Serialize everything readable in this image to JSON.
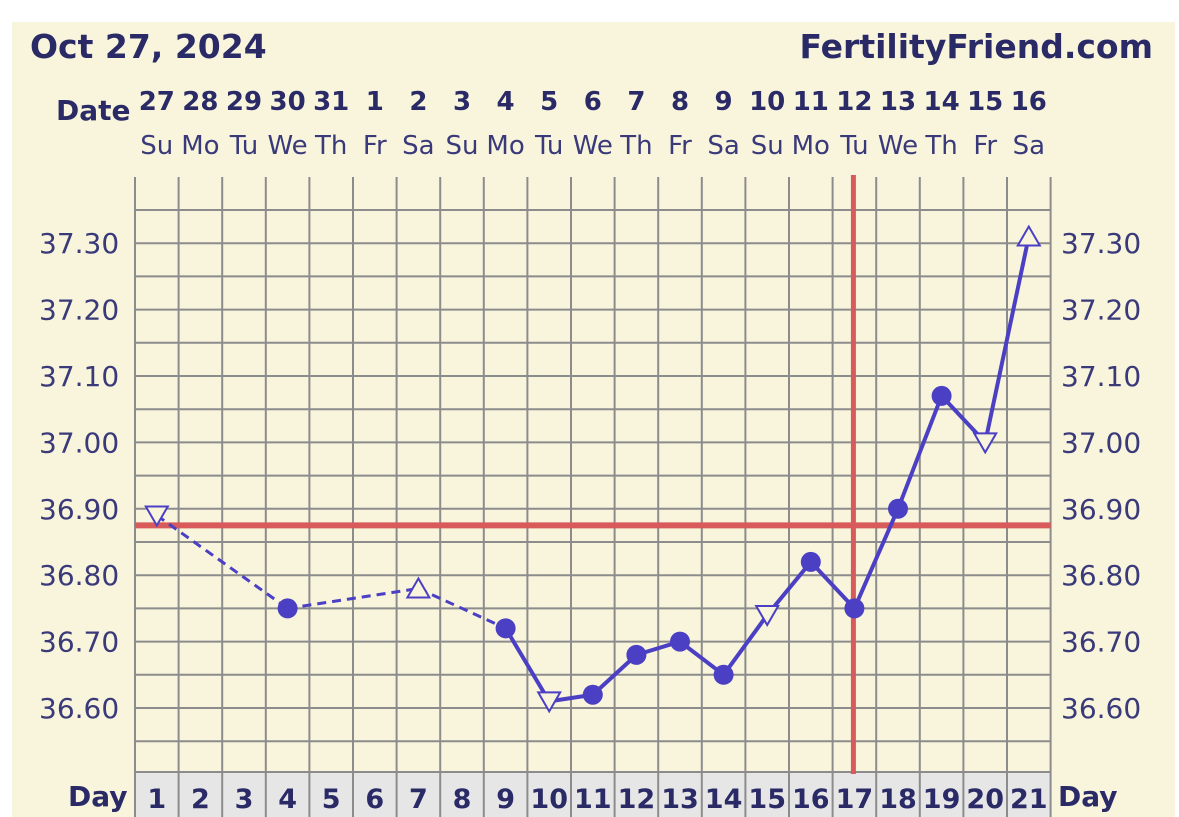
{
  "header": {
    "date": "Oct 27, 2024",
    "site": "FertilityFriend.com",
    "date_label": "Date",
    "day_label": "Day"
  },
  "colors": {
    "temp_line": "#4b3fc4",
    "coverline": "#d85a5a",
    "ovulation_line": "#d85a5a",
    "grid": "#8c8c8c",
    "background": "#f8f5dc"
  },
  "chart_data": {
    "type": "line",
    "title": "",
    "ylim": [
      36.5,
      37.4
    ],
    "y_ticks": [
      "36.60",
      "36.70",
      "36.80",
      "36.90",
      "37.00",
      "37.10",
      "37.20",
      "37.30"
    ],
    "dates": [
      "27",
      "28",
      "29",
      "30",
      "31",
      "1",
      "2",
      "3",
      "4",
      "5",
      "6",
      "7",
      "8",
      "9",
      "10",
      "11",
      "12",
      "13",
      "14",
      "15",
      "16"
    ],
    "weekdays": [
      "Su",
      "Mo",
      "Tu",
      "We",
      "Th",
      "Fr",
      "Sa",
      "Su",
      "Mo",
      "Tu",
      "We",
      "Th",
      "Fr",
      "Sa",
      "Su",
      "Mo",
      "Tu",
      "We",
      "Th",
      "Fr",
      "Sa"
    ],
    "days": [
      1,
      2,
      3,
      4,
      5,
      6,
      7,
      8,
      9,
      10,
      11,
      12,
      13,
      14,
      15,
      16,
      17,
      18,
      19,
      20,
      21
    ],
    "points": [
      {
        "day": 1,
        "temp": 36.89,
        "marker": "triangle-down"
      },
      {
        "day": 4,
        "temp": 36.75,
        "marker": "circle"
      },
      {
        "day": 7,
        "temp": 36.78,
        "marker": "triangle-up"
      },
      {
        "day": 9,
        "temp": 36.72,
        "marker": "circle"
      },
      {
        "day": 10,
        "temp": 36.61,
        "marker": "triangle-down"
      },
      {
        "day": 11,
        "temp": 36.62,
        "marker": "circle"
      },
      {
        "day": 12,
        "temp": 36.68,
        "marker": "circle"
      },
      {
        "day": 13,
        "temp": 36.7,
        "marker": "circle"
      },
      {
        "day": 14,
        "temp": 36.65,
        "marker": "circle"
      },
      {
        "day": 15,
        "temp": 36.74,
        "marker": "triangle-down"
      },
      {
        "day": 16,
        "temp": 36.82,
        "marker": "circle"
      },
      {
        "day": 17,
        "temp": 36.75,
        "marker": "circle"
      },
      {
        "day": 18,
        "temp": 36.9,
        "marker": "circle"
      },
      {
        "day": 19,
        "temp": 37.07,
        "marker": "circle"
      },
      {
        "day": 20,
        "temp": 37.0,
        "marker": "triangle-down"
      },
      {
        "day": 21,
        "temp": 37.31,
        "marker": "triangle-up"
      }
    ],
    "dashed_through_day": 9,
    "coverline": 36.875,
    "ovulation_day": 17
  }
}
